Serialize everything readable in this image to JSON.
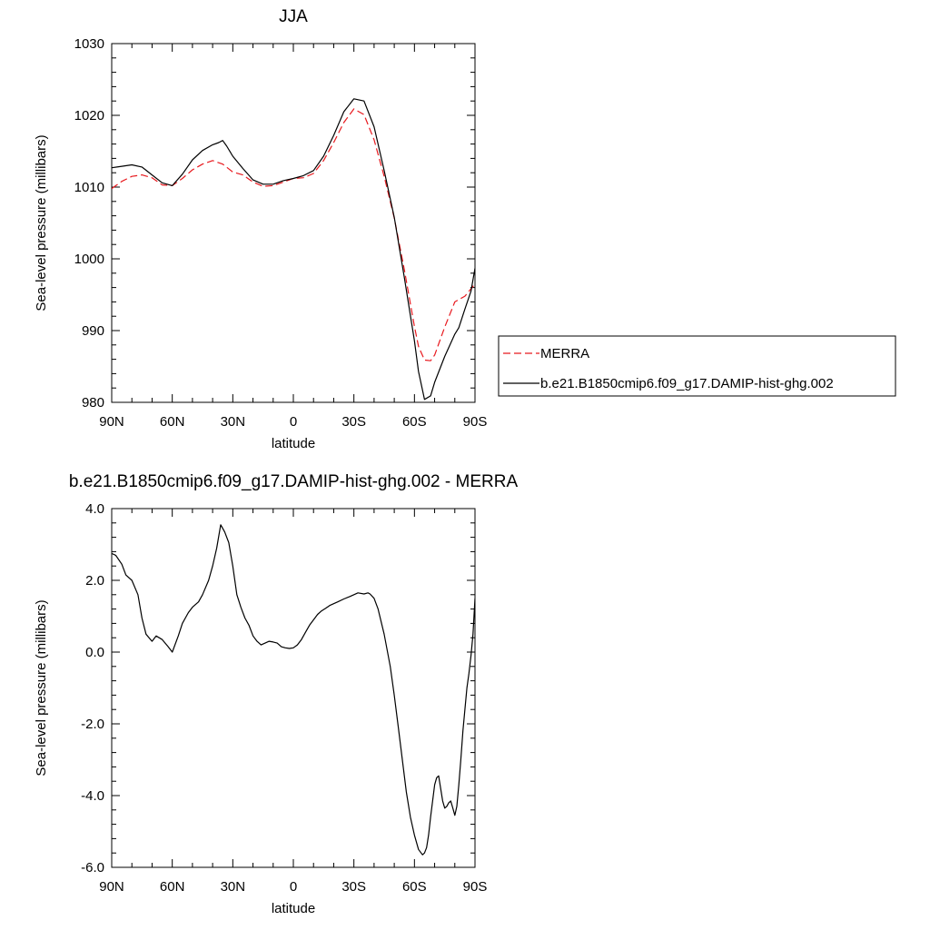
{
  "chart_data": [
    {
      "type": "line",
      "title": "JJA",
      "xlabel": "latitude",
      "ylabel": "Sea-level pressure (millibars)",
      "xlim": [
        90,
        -90
      ],
      "ylim": [
        980,
        1030
      ],
      "x_ticks": [
        {
          "value": 90,
          "label": "90N"
        },
        {
          "value": 60,
          "label": "60N"
        },
        {
          "value": 30,
          "label": "30N"
        },
        {
          "value": 0,
          "label": "0"
        },
        {
          "value": -30,
          "label": "30S"
        },
        {
          "value": -60,
          "label": "60S"
        },
        {
          "value": -90,
          "label": "90S"
        }
      ],
      "y_ticks": [
        {
          "value": 980,
          "label": "980"
        },
        {
          "value": 990,
          "label": "990"
        },
        {
          "value": 1000,
          "label": "1000"
        },
        {
          "value": 1010,
          "label": "1010"
        },
        {
          "value": 1020,
          "label": "1020"
        },
        {
          "value": 1030,
          "label": "1030"
        }
      ],
      "legend_position": "right",
      "series": [
        {
          "name": "MERRA",
          "color": "#e8191e",
          "dash": "dashed",
          "x": [
            90,
            85,
            80,
            75,
            70,
            65,
            60,
            55,
            50,
            45,
            40,
            35,
            30,
            25,
            20,
            15,
            10,
            5,
            0,
            -5,
            -10,
            -15,
            -20,
            -25,
            -30,
            -35,
            -40,
            -45,
            -50,
            -55,
            -60,
            -62,
            -65,
            -68,
            -70,
            -75,
            -80,
            -85,
            -90
          ],
          "y": [
            1009.8,
            1010.8,
            1011.5,
            1011.7,
            1011.3,
            1010.3,
            1010.2,
            1011.2,
            1012.4,
            1013.2,
            1013.7,
            1013.2,
            1012.1,
            1011.7,
            1010.7,
            1010.1,
            1010.2,
            1010.7,
            1011.2,
            1011.3,
            1011.9,
            1013.7,
            1016.2,
            1019.0,
            1020.9,
            1020.1,
            1016.6,
            1011.5,
            1005.7,
            998.5,
            990.6,
            987.8,
            985.9,
            985.8,
            986.6,
            990.5,
            994.0,
            994.8,
            996.5
          ]
        },
        {
          "name": "b.e21.B1850cmip6.f09_g17.DAMIP-hist-ghg.002",
          "color": "#000000",
          "dash": "solid",
          "x": [
            90,
            85,
            80,
            75,
            70,
            65,
            60,
            55,
            50,
            45,
            40,
            37,
            35,
            33,
            30,
            25,
            20,
            15,
            10,
            5,
            0,
            -5,
            -10,
            -15,
            -20,
            -25,
            -30,
            -35,
            -40,
            -45,
            -50,
            -55,
            -60,
            -62,
            -65,
            -68,
            -70,
            -75,
            -80,
            -82,
            -85,
            -88,
            -90
          ],
          "y": [
            1012.7,
            1012.9,
            1013.1,
            1012.8,
            1011.7,
            1010.6,
            1010.2,
            1011.8,
            1013.8,
            1015.1,
            1015.9,
            1016.2,
            1016.5,
            1015.7,
            1014.3,
            1012.6,
            1011.0,
            1010.4,
            1010.4,
            1010.9,
            1011.2,
            1011.6,
            1012.3,
            1014.3,
            1017.2,
            1020.5,
            1022.3,
            1022.0,
            1018.4,
            1012.3,
            1005.8,
            997.4,
            988.6,
            984.3,
            980.4,
            980.9,
            982.8,
            986.4,
            989.5,
            990.4,
            993.0,
            995.5,
            998.7
          ]
        }
      ]
    },
    {
      "type": "line",
      "title": "b.e21.B1850cmip6.f09_g17.DAMIP-hist-ghg.002 - MERRA",
      "xlabel": "latitude",
      "ylabel": "Sea-level pressure (millibars)",
      "xlim": [
        90,
        -90
      ],
      "ylim": [
        -6.0,
        4.0
      ],
      "x_ticks": [
        {
          "value": 90,
          "label": "90N"
        },
        {
          "value": 60,
          "label": "60N"
        },
        {
          "value": 30,
          "label": "30N"
        },
        {
          "value": 0,
          "label": "0"
        },
        {
          "value": -30,
          "label": "30S"
        },
        {
          "value": -60,
          "label": "60S"
        },
        {
          "value": -90,
          "label": "90S"
        }
      ],
      "y_ticks": [
        {
          "value": -6.0,
          "label": "-6.0"
        },
        {
          "value": -4.0,
          "label": "-4.0"
        },
        {
          "value": -2.0,
          "label": "-2.0"
        },
        {
          "value": 0.0,
          "label": "0.0"
        },
        {
          "value": 2.0,
          "label": "2.0"
        },
        {
          "value": 4.0,
          "label": "4.0"
        }
      ],
      "series": [
        {
          "color": "#000000",
          "dash": "solid",
          "x": [
            90,
            88,
            85,
            83,
            80,
            77,
            75,
            73,
            70,
            68,
            65,
            62,
            60,
            57,
            55,
            52,
            50,
            47,
            45,
            42,
            40,
            38,
            36,
            34,
            32,
            30,
            28,
            26,
            24,
            22,
            20,
            18,
            16,
            14,
            12,
            10,
            8,
            6,
            4,
            2,
            0,
            -2,
            -4,
            -6,
            -8,
            -10,
            -12,
            -14,
            -16,
            -18,
            -20,
            -22,
            -25,
            -28,
            -30,
            -32,
            -35,
            -37,
            -38,
            -40,
            -42,
            -45,
            -48,
            -50,
            -52,
            -54,
            -56,
            -58,
            -60,
            -62,
            -64,
            -65,
            -66,
            -67,
            -68,
            -70,
            -71,
            -72,
            -73,
            -74,
            -75,
            -76,
            -77,
            -78,
            -79,
            -80,
            -81,
            -82,
            -83,
            -84,
            -85,
            -86,
            -87,
            -88,
            -89,
            -90
          ],
          "y": [
            2.75,
            2.7,
            2.45,
            2.15,
            2.0,
            1.6,
            0.95,
            0.5,
            0.3,
            0.45,
            0.35,
            0.15,
            0.0,
            0.45,
            0.8,
            1.1,
            1.25,
            1.4,
            1.6,
            2.0,
            2.4,
            2.9,
            3.55,
            3.35,
            3.05,
            2.4,
            1.6,
            1.25,
            0.95,
            0.75,
            0.45,
            0.3,
            0.2,
            0.25,
            0.3,
            0.28,
            0.25,
            0.15,
            0.12,
            0.1,
            0.12,
            0.2,
            0.35,
            0.55,
            0.75,
            0.9,
            1.05,
            1.15,
            1.22,
            1.3,
            1.35,
            1.4,
            1.48,
            1.55,
            1.6,
            1.65,
            1.62,
            1.65,
            1.62,
            1.5,
            1.2,
            0.5,
            -0.4,
            -1.2,
            -2.1,
            -3.0,
            -3.9,
            -4.6,
            -5.1,
            -5.5,
            -5.65,
            -5.6,
            -5.45,
            -5.1,
            -4.6,
            -3.7,
            -3.5,
            -3.45,
            -3.8,
            -4.15,
            -4.35,
            -4.3,
            -4.2,
            -4.15,
            -4.35,
            -4.55,
            -4.3,
            -3.7,
            -3.0,
            -2.2,
            -1.6,
            -1.0,
            -0.6,
            -0.1,
            0.5,
            1.5
          ]
        }
      ]
    }
  ]
}
